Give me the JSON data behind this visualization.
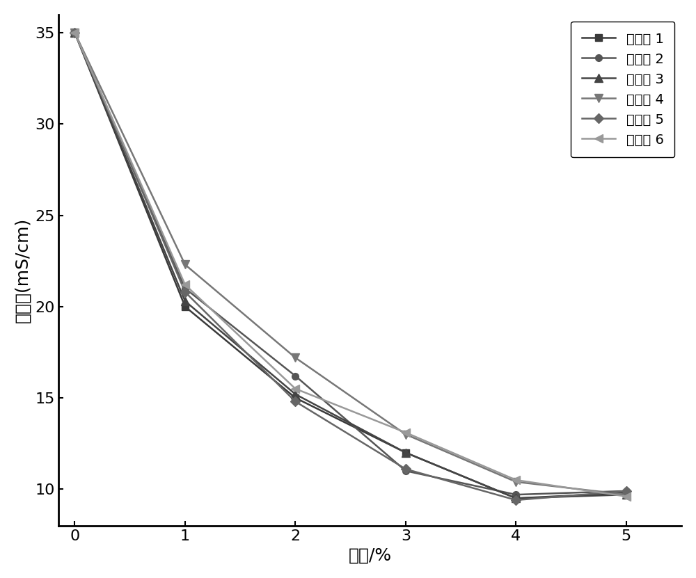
{
  "x": [
    0,
    1,
    2,
    3,
    4,
    5
  ],
  "series": [
    {
      "label": "实施例 1",
      "y": [
        35,
        20,
        15,
        12,
        9.5,
        9.8
      ],
      "color": "#3a3a3a",
      "marker": "s",
      "markersize": 7,
      "linewidth": 1.8
    },
    {
      "label": "实施例 2",
      "y": [
        35,
        21.0,
        16.2,
        11.0,
        9.7,
        9.9
      ],
      "color": "#555555",
      "marker": "o",
      "markersize": 7,
      "linewidth": 1.8
    },
    {
      "label": "实施例 3",
      "y": [
        35,
        20.3,
        15.2,
        12.0,
        9.5,
        9.7
      ],
      "color": "#444444",
      "marker": "^",
      "markersize": 8,
      "linewidth": 1.8
    },
    {
      "label": "实施例 4",
      "y": [
        35,
        22.3,
        17.2,
        13.0,
        10.4,
        9.7
      ],
      "color": "#777777",
      "marker": "v",
      "markersize": 8,
      "linewidth": 1.8
    },
    {
      "label": "实施例 5",
      "y": [
        35,
        20.8,
        14.8,
        11.1,
        9.4,
        9.9
      ],
      "color": "#666666",
      "marker": "D",
      "markersize": 7,
      "linewidth": 1.8
    },
    {
      "label": "实施例 6",
      "y": [
        35,
        21.2,
        15.5,
        13.1,
        10.5,
        9.6
      ],
      "color": "#999999",
      "marker": "<",
      "markersize": 9,
      "linewidth": 1.8
    }
  ],
  "xlabel": "掺量/%",
  "ylabel": "电导率(mS/cm)",
  "xlim": [
    -0.15,
    5.5
  ],
  "ylim": [
    8.0,
    36.0
  ],
  "yticks": [
    10,
    15,
    20,
    25,
    30,
    35
  ],
  "xticks": [
    0,
    1,
    2,
    3,
    4,
    5
  ],
  "axis_label_fontsize": 18,
  "tick_fontsize": 16,
  "legend_fontsize": 14,
  "legend_loc": "upper right",
  "background_color": "#ffffff",
  "spine_linewidth": 2.0
}
